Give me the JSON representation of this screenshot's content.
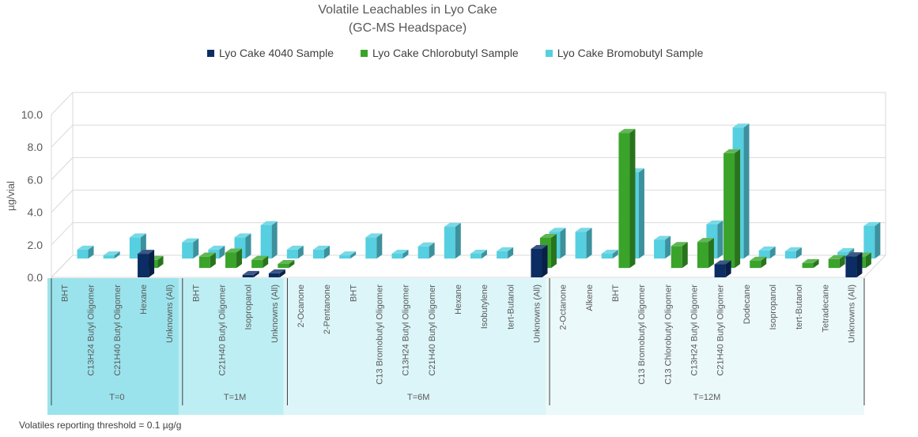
{
  "chart_data": {
    "type": "bar",
    "title": "Volatile Leachables in Lyo Cake",
    "subtitle": "(GC-MS Headspace)",
    "ylabel": "µg/vial",
    "ylim": [
      0,
      10
    ],
    "yticks": [
      "0.0",
      "2.0",
      "4.0",
      "6.0",
      "8.0",
      "10.0"
    ],
    "legend_position": "top",
    "grid": true,
    "series": [
      {
        "name": "Lyo Cake 4040 Sample",
        "color": "#0b2d64"
      },
      {
        "name": "Lyo Cake Chlorobutyl Sample",
        "color": "#3aa42a"
      },
      {
        "name": "Lyo Cake Bromobutyl Sample",
        "color": "#56cfe0"
      }
    ],
    "groups": [
      {
        "label": "T=0",
        "color": "#9be3ec",
        "categories": [
          {
            "name": "BHT",
            "values": [
              null,
              null,
              0.55
            ]
          },
          {
            "name": "C13H24 Butyl Oligomer",
            "values": [
              null,
              null,
              0.2
            ]
          },
          {
            "name": "C21H40 Butyl Oligomer",
            "values": [
              null,
              null,
              1.3
            ]
          },
          {
            "name": "Hexane",
            "values": [
              1.45,
              0.5,
              null
            ]
          },
          {
            "name": "Unknowns (All)",
            "values": [
              null,
              null,
              1.0
            ]
          }
        ]
      },
      {
        "label": "T=1M",
        "color": "#bdeef3",
        "categories": [
          {
            "name": "BHT",
            "values": [
              null,
              0.7,
              0.55
            ]
          },
          {
            "name": "C21H40 Butyl Oligomer",
            "values": [
              null,
              0.95,
              1.3
            ]
          },
          {
            "name": "Isopropanol",
            "values": [
              0.15,
              0.5,
              2.05
            ]
          },
          {
            "name": "Unknowns (All)",
            "values": [
              0.25,
              0.25,
              0.55
            ]
          }
        ]
      },
      {
        "label": "T=6M",
        "color": "#dcf5f8",
        "categories": [
          {
            "name": "2-Ocanone",
            "values": [
              null,
              null,
              0.55
            ]
          },
          {
            "name": "2-Pentanone",
            "values": [
              null,
              null,
              0.2
            ]
          },
          {
            "name": "BHT",
            "values": [
              null,
              null,
              1.3
            ]
          },
          {
            "name": "C13 Bromobutyl Oligomer",
            "values": [
              null,
              null,
              0.3
            ]
          },
          {
            "name": "C13H24 Butyl Oligomer",
            "values": [
              null,
              null,
              0.75
            ]
          },
          {
            "name": "C21H40 Butyl Oligomer",
            "values": [
              null,
              null,
              1.95
            ]
          },
          {
            "name": "Hexane",
            "values": [
              null,
              null,
              0.3
            ]
          },
          {
            "name": "Isobutylene",
            "values": [
              null,
              null,
              0.45
            ]
          },
          {
            "name": "tert-Butanol",
            "values": [
              null,
              null,
              null
            ]
          },
          {
            "name": "Unknowns (All)",
            "values": [
              1.75,
              1.85,
              1.65
            ]
          }
        ]
      },
      {
        "label": "T=12M",
        "color": "#ebf9fb",
        "categories": [
          {
            "name": "2-Octanone",
            "values": [
              null,
              null,
              1.65
            ]
          },
          {
            "name": "Alkene",
            "values": [
              null,
              null,
              0.3
            ]
          },
          {
            "name": "BHT",
            "values": [
              null,
              8.3,
              5.3
            ]
          },
          {
            "name": "C13 Bromobutyl Oligomer",
            "values": [
              null,
              null,
              1.15
            ]
          },
          {
            "name": "C13 Chlorobutyl Oligomer",
            "values": [
              null,
              1.35,
              null
            ]
          },
          {
            "name": "C13H24 Butyl Oligomer",
            "values": [
              null,
              1.6,
              2.1
            ]
          },
          {
            "name": "C21H40 Butyl Oligomer",
            "values": [
              0.8,
              7.05,
              8.05
            ]
          },
          {
            "name": "Dodecane",
            "values": [
              null,
              0.45,
              0.5
            ]
          },
          {
            "name": "Isopropanol",
            "values": [
              null,
              null,
              0.45
            ]
          },
          {
            "name": "tert-Butanol",
            "values": [
              null,
              0.3,
              null
            ]
          },
          {
            "name": "Tetradecane",
            "values": [
              null,
              0.55,
              0.4
            ]
          },
          {
            "name": "Unknowns (All)",
            "values": [
              1.3,
              0.7,
              2.0
            ]
          }
        ]
      }
    ],
    "footnote": "Volatiles reporting threshold = 0.1 µg/g"
  }
}
